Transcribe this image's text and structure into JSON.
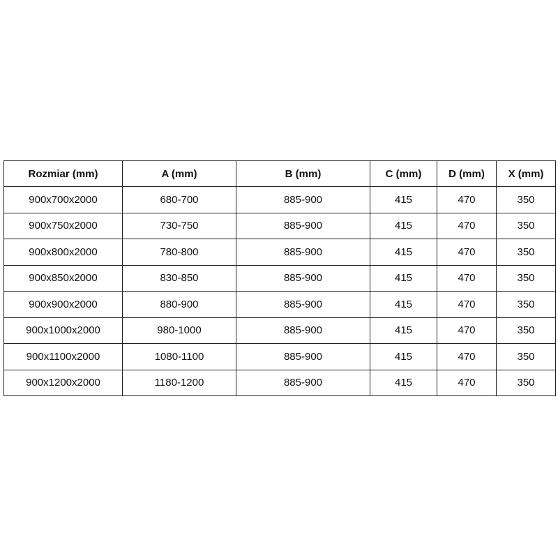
{
  "headers": [
    "Rozmiar (mm)",
    "A (mm)",
    "B (mm)",
    "C (mm)",
    "D (mm)",
    "X (mm)"
  ],
  "rows": [
    [
      "900x700x2000",
      "680-700",
      "885-900",
      "415",
      "470",
      "350"
    ],
    [
      "900x750x2000",
      "730-750",
      "885-900",
      "415",
      "470",
      "350"
    ],
    [
      "900x800x2000",
      "780-800",
      "885-900",
      "415",
      "470",
      "350"
    ],
    [
      "900x850x2000",
      "830-850",
      "885-900",
      "415",
      "470",
      "350"
    ],
    [
      "900x900x2000",
      "880-900",
      "885-900",
      "415",
      "470",
      "350"
    ],
    [
      "900x1000x2000",
      "980-1000",
      "885-900",
      "415",
      "470",
      "350"
    ],
    [
      "900x1100x2000",
      "1080-1100",
      "885-900",
      "415",
      "470",
      "350"
    ],
    [
      "900x1200x2000",
      "1180-1200",
      "885-900",
      "415",
      "470",
      "350"
    ]
  ]
}
